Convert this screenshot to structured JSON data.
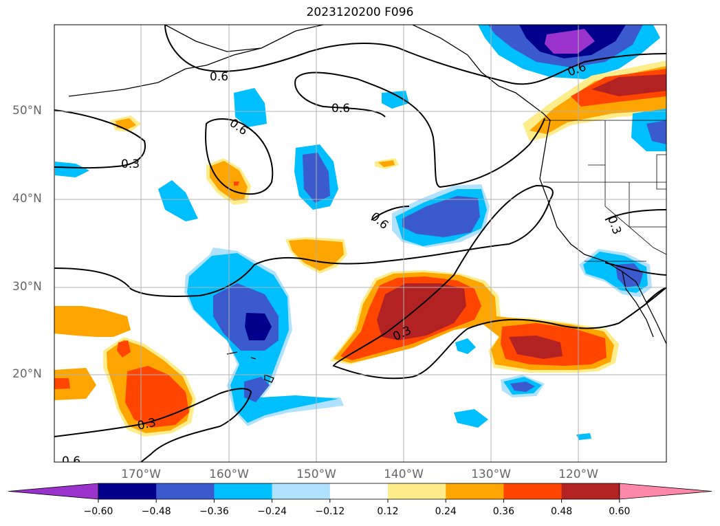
{
  "title": "2023120200 F096",
  "lat_labels": [
    "50°N",
    "40°N",
    "30°N",
    "20°N"
  ],
  "lon_labels": [
    "170°W",
    "160°W",
    "150°W",
    "140°W",
    "130°W",
    "120°W"
  ],
  "contour_labels": [
    "0.6",
    "0.6",
    "0.6",
    "0.6",
    "0.3",
    "0.6",
    "0.3",
    "0.3",
    "0.6",
    "0.3"
  ],
  "colorbar": {
    "ticks": [
      "−0.60",
      "−0.48",
      "−0.36",
      "−0.24",
      "−0.12",
      "0.12",
      "0.24",
      "0.36",
      "0.48",
      "0.60"
    ],
    "colors": [
      "#9933cc",
      "#00008b",
      "#3a5acd",
      "#00bfff",
      "#b0e2ff",
      "#ffffff",
      "#ffec8b",
      "#ffa500",
      "#ff4500",
      "#b22222",
      "#ff88aa"
    ]
  }
}
